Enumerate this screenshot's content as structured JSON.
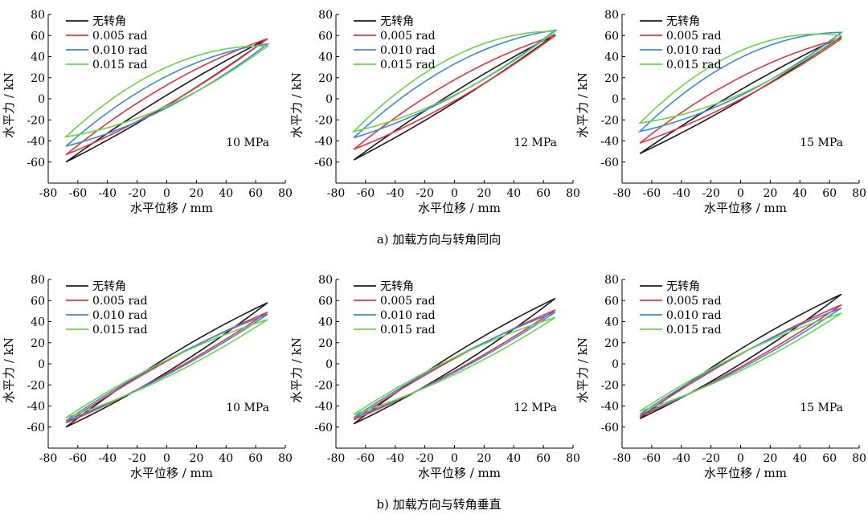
{
  "captions": {
    "row_a": "a)  加载方向与转角同向",
    "row_b": "b)  加载方向与转角垂直"
  },
  "colors": {
    "series": [
      "#1a1a1a",
      "#e8323c",
      "#3f86d8",
      "#6dd24a"
    ],
    "axis": "#000000"
  },
  "chart_data": [
    {
      "type": "line",
      "row": "a",
      "col": 0,
      "annotation": "10 MPa",
      "xlabel": "水平位移 / mm",
      "ylabel": "水平力 / kN",
      "xlim": [
        -80,
        80
      ],
      "ylim": [
        -80,
        80
      ],
      "xticks": [
        -80,
        -60,
        -40,
        -20,
        0,
        20,
        40,
        60,
        80
      ],
      "yticks": [
        -60,
        -40,
        -20,
        0,
        20,
        40,
        60,
        80
      ],
      "series": [
        {
          "name": "无转角",
          "x_range": [
            -68,
            68
          ],
          "f_min": -60,
          "f_max": 57,
          "h": 5,
          "shift": 0
        },
        {
          "name": "0.005 rad",
          "x_range": [
            -68,
            68
          ],
          "f_min": -53,
          "f_max": 57,
          "h": 8,
          "shift": 3
        },
        {
          "name": "0.010 rad",
          "x_range": [
            -68,
            68
          ],
          "f_min": -45,
          "f_max": 52,
          "h": 12,
          "shift": 6
        },
        {
          "name": "0.015 rad",
          "x_range": [
            -68,
            68
          ],
          "f_min": -36,
          "f_max": 50,
          "h": 14,
          "shift": 9
        }
      ]
    },
    {
      "type": "line",
      "row": "a",
      "col": 1,
      "annotation": "12 MPa",
      "xlabel": "水平位移 / mm",
      "ylabel": "水平力 / kN",
      "xlim": [
        -80,
        80
      ],
      "ylim": [
        -80,
        80
      ],
      "xticks": [
        -80,
        -60,
        -40,
        -20,
        0,
        20,
        40,
        60,
        80
      ],
      "yticks": [
        -60,
        -40,
        -20,
        0,
        20,
        40,
        60,
        80
      ],
      "series": [
        {
          "name": "无转角",
          "x_range": [
            -68,
            68
          ],
          "f_min": -58,
          "f_max": 61,
          "h": 5,
          "shift": 0
        },
        {
          "name": "0.005 rad",
          "x_range": [
            -68,
            68
          ],
          "f_min": -48,
          "f_max": 60,
          "h": 8,
          "shift": 4
        },
        {
          "name": "0.010 rad",
          "x_range": [
            -68,
            68
          ],
          "f_min": -37,
          "f_max": 65,
          "h": 11,
          "shift": 8
        },
        {
          "name": "0.015 rad",
          "x_range": [
            -68,
            68
          ],
          "f_min": -31,
          "f_max": 64,
          "h": 13,
          "shift": 11
        }
      ]
    },
    {
      "type": "line",
      "row": "a",
      "col": 2,
      "annotation": "15 MPa",
      "xlabel": "水平位移 / mm",
      "ylabel": "水平力 / kN",
      "xlim": [
        -80,
        80
      ],
      "ylim": [
        -80,
        80
      ],
      "xticks": [
        -80,
        -60,
        -40,
        -20,
        0,
        20,
        40,
        60,
        80
      ],
      "yticks": [
        -60,
        -40,
        -20,
        0,
        20,
        40,
        60,
        80
      ],
      "series": [
        {
          "name": "无转角",
          "x_range": [
            -68,
            68
          ],
          "f_min": -52,
          "f_max": 59,
          "h": 5,
          "shift": 0
        },
        {
          "name": "0.005 rad",
          "x_range": [
            -68,
            68
          ],
          "f_min": -42,
          "f_max": 57,
          "h": 8,
          "shift": 5
        },
        {
          "name": "0.010 rad",
          "x_range": [
            -68,
            68
          ],
          "f_min": -31,
          "f_max": 63,
          "h": 13,
          "shift": 10
        },
        {
          "name": "0.015 rad",
          "x_range": [
            -68,
            68
          ],
          "f_min": -23,
          "f_max": 60,
          "h": 14,
          "shift": 13
        }
      ]
    },
    {
      "type": "line",
      "row": "b",
      "col": 0,
      "annotation": "10 MPa",
      "xlabel": "水平位移 / mm",
      "ylabel": "水平力 / kN",
      "xlim": [
        -80,
        80
      ],
      "ylim": [
        -80,
        80
      ],
      "xticks": [
        -80,
        -60,
        -40,
        -20,
        0,
        20,
        40,
        60,
        80
      ],
      "yticks": [
        -60,
        -40,
        -20,
        0,
        20,
        40,
        60,
        80
      ],
      "series": [
        {
          "name": "无转角",
          "x_range": [
            -68,
            68
          ],
          "f_min": -60,
          "f_max": 58,
          "h": 7,
          "shift": 0
        },
        {
          "name": "0.005 rad",
          "x_range": [
            -68,
            68
          ],
          "f_min": -56,
          "f_max": 49,
          "h": 6,
          "shift": 0
        },
        {
          "name": "0.010 rad",
          "x_range": [
            -68,
            68
          ],
          "f_min": -54,
          "f_max": 47,
          "h": 7,
          "shift": 0
        },
        {
          "name": "0.015 rad",
          "x_range": [
            -68,
            68
          ],
          "f_min": -51,
          "f_max": 42,
          "h": 8,
          "shift": 0
        }
      ]
    },
    {
      "type": "line",
      "row": "b",
      "col": 1,
      "annotation": "12 MPa",
      "xlabel": "水平位移 / mm",
      "ylabel": "水平力 / kN",
      "xlim": [
        -80,
        80
      ],
      "ylim": [
        -80,
        80
      ],
      "xticks": [
        -80,
        -60,
        -40,
        -20,
        0,
        20,
        40,
        60,
        80
      ],
      "yticks": [
        -60,
        -40,
        -20,
        0,
        20,
        40,
        60,
        80
      ],
      "series": [
        {
          "name": "无转角",
          "x_range": [
            -68,
            68
          ],
          "f_min": -57,
          "f_max": 62,
          "h": 7,
          "shift": 0
        },
        {
          "name": "0.005 rad",
          "x_range": [
            -68,
            68
          ],
          "f_min": -53,
          "f_max": 51,
          "h": 6,
          "shift": 0
        },
        {
          "name": "0.010 rad",
          "x_range": [
            -68,
            68
          ],
          "f_min": -51,
          "f_max": 49,
          "h": 7,
          "shift": 0
        },
        {
          "name": "0.015 rad",
          "x_range": [
            -68,
            68
          ],
          "f_min": -48,
          "f_max": 44,
          "h": 8,
          "shift": 0
        }
      ]
    },
    {
      "type": "line",
      "row": "b",
      "col": 2,
      "annotation": "15 MPa",
      "xlabel": "水平位移 / mm",
      "ylabel": "水平力 / kN",
      "xlim": [
        -80,
        80
      ],
      "ylim": [
        -80,
        80
      ],
      "xticks": [
        -80,
        -60,
        -40,
        -20,
        0,
        20,
        40,
        60,
        80
      ],
      "yticks": [
        -60,
        -40,
        -20,
        0,
        20,
        40,
        60,
        80
      ],
      "series": [
        {
          "name": "无转角",
          "x_range": [
            -68,
            68
          ],
          "f_min": -52,
          "f_max": 66,
          "h": 7,
          "shift": 0
        },
        {
          "name": "0.005 rad",
          "x_range": [
            -68,
            68
          ],
          "f_min": -50,
          "f_max": 56,
          "h": 6,
          "shift": 0
        },
        {
          "name": "0.010 rad",
          "x_range": [
            -68,
            68
          ],
          "f_min": -48,
          "f_max": 53,
          "h": 7,
          "shift": 0
        },
        {
          "name": "0.015 rad",
          "x_range": [
            -68,
            68
          ],
          "f_min": -45,
          "f_max": 48,
          "h": 8,
          "shift": 0
        }
      ]
    }
  ]
}
